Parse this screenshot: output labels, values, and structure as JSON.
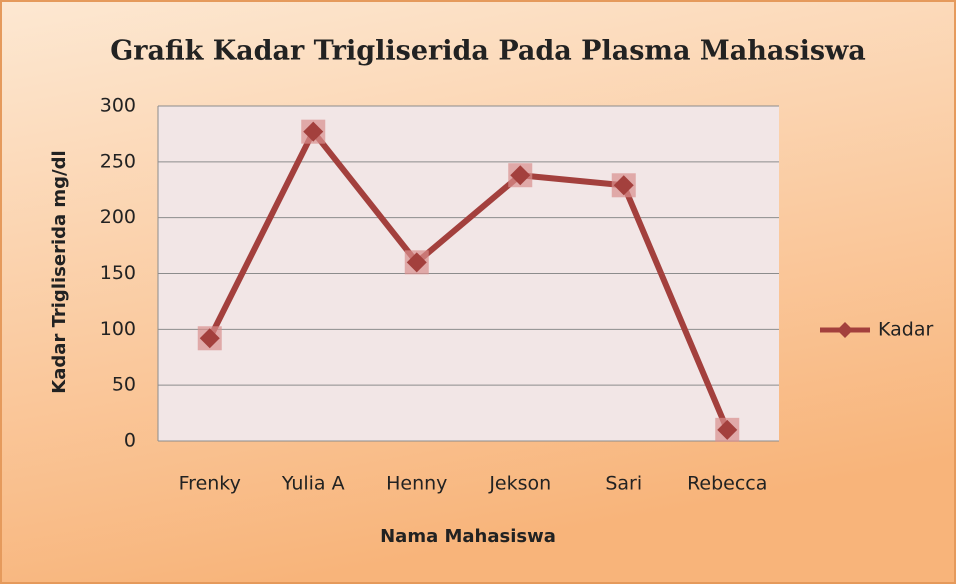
{
  "chart_data": {
    "type": "line",
    "title": "Grafik Kadar Trigliserida Pada Plasma Mahasiswa",
    "x_label": "Nama Mahasiswa",
    "y_label": "Kadar Trigliserida mg/dl",
    "categories": [
      "Frenky",
      "Yulia A",
      "Henny",
      "Jekson",
      "Sari",
      "Rebecca"
    ],
    "series": [
      {
        "name": "Kadar",
        "color": "#a3403d",
        "values": [
          92,
          277,
          160,
          238,
          229,
          10
        ]
      }
    ],
    "ylim": [
      0,
      300
    ],
    "yticks": [
      0,
      50,
      100,
      150,
      200,
      250,
      300
    ],
    "grid": true,
    "legend": "right"
  }
}
